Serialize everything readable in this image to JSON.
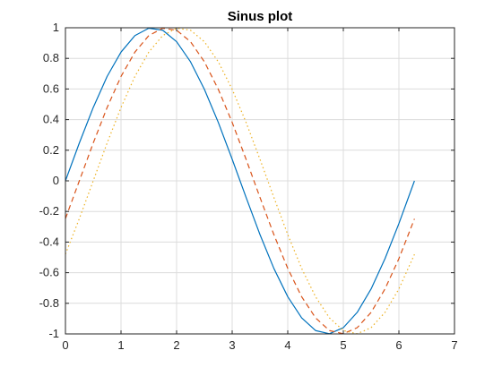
{
  "chart_data": {
    "type": "line",
    "title": "Sinus plot",
    "xlabel": "",
    "ylabel": "",
    "xlim": [
      0,
      7
    ],
    "ylim": [
      -1,
      1
    ],
    "xticks": [
      0,
      1,
      2,
      3,
      4,
      5,
      6,
      7
    ],
    "xtick_labels": [
      "0",
      "1",
      "2",
      "3",
      "4",
      "5",
      "6",
      "7"
    ],
    "yticks": [
      -1,
      -0.8,
      -0.6,
      -0.4,
      -0.2,
      0,
      0.2,
      0.4,
      0.6,
      0.8,
      1
    ],
    "ytick_labels": [
      "-1",
      "-0.8",
      "-0.6",
      "-0.4",
      "-0.2",
      "0",
      "0.2",
      "0.4",
      "0.6",
      "0.8",
      "1"
    ],
    "grid": true,
    "x": [
      0,
      0.25,
      0.5,
      0.75,
      1,
      1.25,
      1.5,
      1.75,
      2,
      2.25,
      2.5,
      2.75,
      3,
      3.25,
      3.5,
      3.75,
      4,
      4.25,
      4.5,
      4.75,
      5,
      5.25,
      5.5,
      5.75,
      6,
      6.28
    ],
    "series": [
      {
        "style": "solid",
        "color": "#0072BD",
        "values": [
          0,
          0.247,
          0.479,
          0.682,
          0.841,
          0.949,
          0.997,
          0.984,
          0.909,
          0.778,
          0.598,
          0.382,
          0.141,
          -0.108,
          -0.351,
          -0.572,
          -0.757,
          -0.895,
          -0.978,
          -0.999,
          -0.959,
          -0.859,
          -0.706,
          -0.508,
          -0.279,
          0
        ]
      },
      {
        "style": "dashed",
        "color": "#D95319",
        "values": [
          -0.247,
          0,
          0.247,
          0.479,
          0.682,
          0.841,
          0.949,
          0.997,
          0.984,
          0.909,
          0.778,
          0.598,
          0.382,
          0.141,
          -0.108,
          -0.351,
          -0.572,
          -0.757,
          -0.895,
          -0.978,
          -0.999,
          -0.959,
          -0.859,
          -0.706,
          -0.508,
          -0.248
        ]
      },
      {
        "style": "dotted",
        "color": "#EDB120",
        "values": [
          -0.479,
          -0.247,
          0,
          0.247,
          0.479,
          0.682,
          0.841,
          0.949,
          0.997,
          0.984,
          0.909,
          0.778,
          0.598,
          0.382,
          0.141,
          -0.108,
          -0.351,
          -0.572,
          -0.757,
          -0.895,
          -0.978,
          -0.999,
          -0.959,
          -0.859,
          -0.706,
          -0.48
        ]
      }
    ]
  }
}
